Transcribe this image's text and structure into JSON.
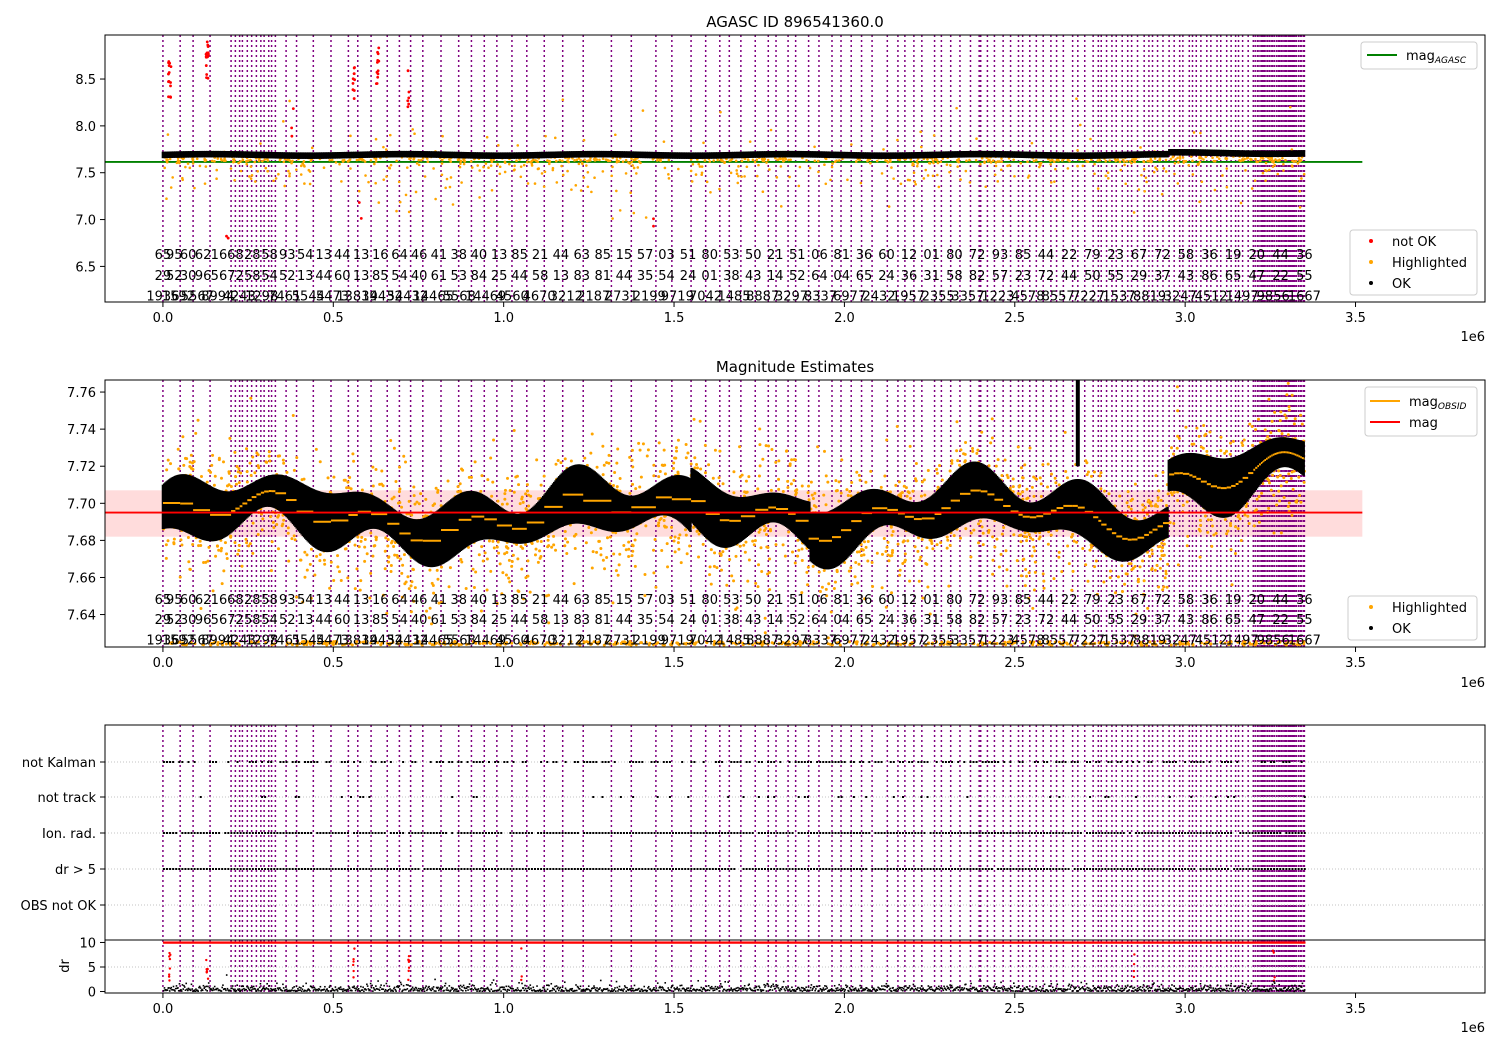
{
  "colors": {
    "purple": "#800080",
    "orange": "#ffa500",
    "red": "#ff0000",
    "green": "#008000",
    "black": "#000000",
    "band": "#ffc0c0"
  },
  "chart_data": [
    {
      "type": "scatter",
      "title": "AGASC ID 896541360.0",
      "x_range": [
        -170000,
        3880000
      ],
      "y_range": [
        6.12,
        8.97
      ],
      "x_ticks": [
        0,
        500000,
        1000000,
        1500000,
        2000000,
        2500000,
        3000000,
        3500000
      ],
      "x_tick_labels": [
        "0.0",
        "0.5",
        "1.0",
        "1.5",
        "2.0",
        "2.5",
        "3.0",
        "3.5"
      ],
      "y_ticks": [
        6.5,
        7.0,
        7.5,
        8.0,
        8.5
      ],
      "y_tick_labels": [
        "6.5",
        "7.0",
        "7.5",
        "8.0",
        "8.5"
      ],
      "x_scale_label": "1e6",
      "mag_agasc": 7.615,
      "ok_band": [
        7.67,
        7.72
      ],
      "obsid_row_y": [
        6.63,
        6.41,
        6.19
      ],
      "obsid_labels": [
        [
          "65",
          "95",
          "60",
          "62",
          "16",
          "68",
          "28",
          "58",
          "93",
          "54",
          "13",
          "44",
          "13",
          "16",
          "64",
          "46",
          "41",
          "38",
          "40",
          "13",
          "85",
          "21",
          "44",
          "63",
          "85",
          "15",
          "57",
          "03",
          "51",
          "80",
          "53",
          "50",
          "21",
          "51",
          "06",
          "81",
          "36",
          "60",
          "12",
          "01",
          "80",
          "72",
          "93",
          "85",
          "44",
          "22",
          "79",
          "23",
          "67",
          "72",
          "58",
          "36",
          "19",
          "20",
          "44",
          "36"
        ],
        [
          "29",
          "52",
          "30",
          "96",
          "56",
          "72",
          "58",
          "54",
          "52",
          "13",
          "44",
          "60",
          "13",
          "85",
          "54",
          "40",
          "61",
          "53",
          "84",
          "25",
          "44",
          "58",
          "13",
          "83",
          "81",
          "44",
          "35",
          "54",
          "24",
          "01",
          "38",
          "43",
          "14",
          "52",
          "64",
          "04",
          "65",
          "24",
          "36",
          "31",
          "58",
          "82",
          "57",
          "23",
          "72",
          "44",
          "50",
          "55",
          "29",
          "37",
          "43",
          "86",
          "65",
          "47",
          "22",
          "55"
        ],
        [
          "1936",
          "1592",
          "5567",
          "8994",
          "4243",
          "1298",
          "7461",
          "5544",
          "5473",
          "13839",
          "14432",
          "54432",
          "14465",
          "5568",
          "14469",
          "4560",
          "4670",
          "3212",
          "2187",
          "2731",
          "2199",
          "9719",
          "7042",
          "1485",
          "8887",
          "3297",
          "8337",
          "6977",
          "2432",
          "1957",
          "2355",
          "3357",
          "1223",
          "4578",
          "8557",
          "7227",
          "1537",
          "8819",
          "3247",
          "4512",
          "1497",
          "9856",
          "1667"
        ]
      ],
      "legend": [
        {
          "label": "mag",
          "sub": "AGASC",
          "color": "#008000",
          "kind": "line"
        },
        {
          "label": "not OK",
          "color": "#ff0000",
          "kind": "dot"
        },
        {
          "label": "Highlighted",
          "color": "#ffa500",
          "kind": "dot"
        },
        {
          "label": "OK",
          "color": "#000000",
          "kind": "dot"
        }
      ]
    },
    {
      "type": "scatter",
      "title": "Magnitude Estimates",
      "x_range": [
        -170000,
        3880000
      ],
      "y_range": [
        7.6225,
        7.7665
      ],
      "x_ticks": [
        0,
        500000,
        1000000,
        1500000,
        2000000,
        2500000,
        3000000,
        3500000
      ],
      "x_tick_labels": [
        "0.0",
        "0.5",
        "1.0",
        "1.5",
        "2.0",
        "2.5",
        "3.0",
        "3.5"
      ],
      "y_ticks": [
        7.64,
        7.66,
        7.68,
        7.7,
        7.72,
        7.74,
        7.76
      ],
      "y_tick_labels": [
        "7.64",
        "7.66",
        "7.68",
        "7.70",
        "7.72",
        "7.74",
        "7.76"
      ],
      "x_scale_label": "1e6",
      "mag": 7.695,
      "mag_band": [
        7.682,
        7.707
      ],
      "obsid_row_y": [
        7.6485,
        7.6375,
        7.6265
      ],
      "legend": [
        {
          "label": "mag",
          "sub": "OBSID",
          "color": "#ffa500",
          "kind": "line"
        },
        {
          "label": "mag",
          "color": "#ff0000",
          "kind": "line"
        },
        {
          "label": "Highlighted",
          "color": "#ffa500",
          "kind": "dot"
        },
        {
          "label": "OK",
          "color": "#000000",
          "kind": "dot"
        }
      ]
    },
    {
      "type": "scatter",
      "title": "",
      "x_range": [
        -170000,
        3880000
      ],
      "categories": [
        "not Kalman",
        "not track",
        "Ion. rad.",
        "dr > 5",
        "OBS not OK"
      ],
      "category_density": [
        0.55,
        0.12,
        0.95,
        0.95,
        0.0
      ],
      "dr_ylabel": "dr",
      "dr_range": [
        -0.3,
        10.3
      ],
      "dr_ticks": [
        0,
        5,
        10
      ],
      "dr_tick_labels": [
        "0",
        "5",
        "10"
      ],
      "dr_limit": 10,
      "x_ticks": [
        0,
        500000,
        1000000,
        1500000,
        2000000,
        2500000,
        3000000,
        3500000
      ],
      "x_tick_labels": [
        "0.0",
        "0.5",
        "1.0",
        "1.5",
        "2.0",
        "2.5",
        "3.0",
        "3.5"
      ],
      "x_scale_label": "1e6"
    }
  ]
}
